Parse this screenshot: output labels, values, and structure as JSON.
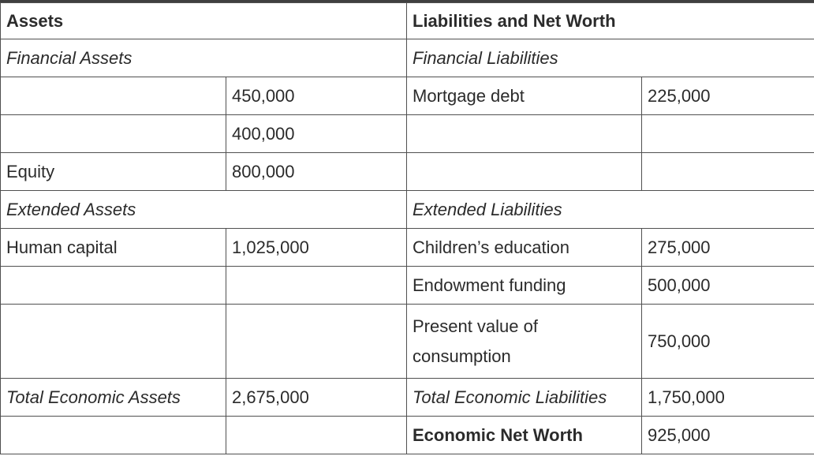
{
  "header": {
    "assets": "Assets",
    "liabilities": "Liabilities and Net Worth"
  },
  "sections": {
    "financial_assets": "Financial Assets",
    "financial_liabilities": "Financial Liabilities",
    "extended_assets": "Extended Assets",
    "extended_liabilities": "Extended Liabilities"
  },
  "rows": {
    "r1": {
      "asset_label": "",
      "asset_value": "450,000",
      "liab_label": "Mortgage debt",
      "liab_value": "225,000"
    },
    "r2": {
      "asset_label": "",
      "asset_value": "400,000",
      "liab_label": "",
      "liab_value": ""
    },
    "r3": {
      "asset_label": "Equity",
      "asset_value": "800,000",
      "liab_label": "",
      "liab_value": ""
    },
    "r4": {
      "asset_label": "Human capital",
      "asset_value": "1,025,000",
      "liab_label": "Children’s education",
      "liab_value": "275,000"
    },
    "r5": {
      "asset_label": "",
      "asset_value": "",
      "liab_label": "Endowment funding",
      "liab_value": "500,000"
    },
    "r6": {
      "asset_label": "",
      "asset_value": "",
      "liab_label": "Present value of consumption",
      "liab_value": "750,000"
    }
  },
  "totals": {
    "assets_label": "Total Economic Assets",
    "assets_value": "2,675,000",
    "liabilities_label": "Total Economic Liabilities",
    "liabilities_value": "1,750,000"
  },
  "net_worth": {
    "label": "Economic Net Worth",
    "value": "925,000"
  }
}
